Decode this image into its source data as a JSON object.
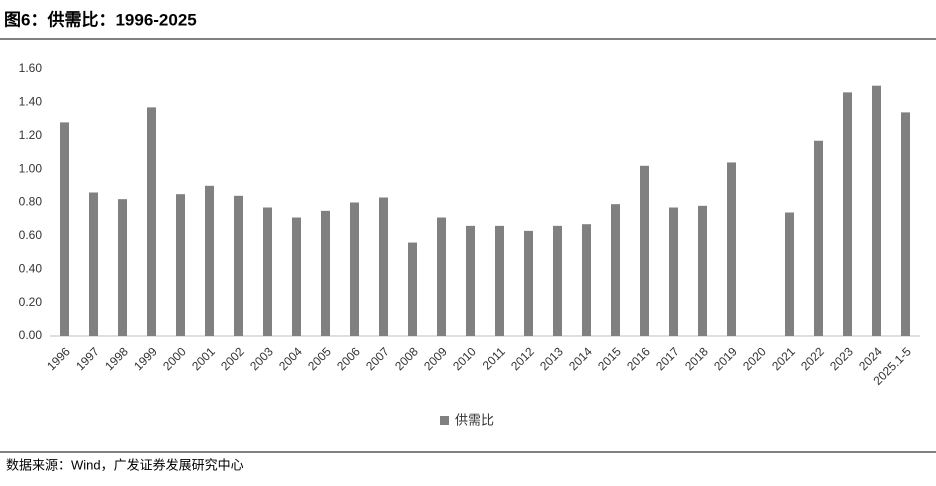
{
  "chart_data": {
    "type": "bar",
    "title": "图6：供需比：1996-2025",
    "categories": [
      "1996",
      "1997",
      "1998",
      "1999",
      "2000",
      "2001",
      "2002",
      "2003",
      "2004",
      "2005",
      "2006",
      "2007",
      "2008",
      "2009",
      "2010",
      "2011",
      "2012",
      "2013",
      "2014",
      "2015",
      "2016",
      "2017",
      "2018",
      "2019",
      "2020",
      "2021",
      "2022",
      "2023",
      "2024",
      "2025.1-5"
    ],
    "series": [
      {
        "name": "供需比",
        "color": "#808080",
        "values": [
          1.28,
          0.86,
          0.82,
          1.37,
          0.85,
          0.9,
          0.84,
          0.77,
          0.71,
          0.75,
          0.8,
          0.83,
          0.56,
          0.71,
          0.66,
          0.66,
          0.63,
          0.66,
          0.67,
          0.79,
          1.02,
          0.77,
          0.78,
          1.04,
          null,
          0.74,
          1.17,
          1.46,
          1.5,
          1.34
        ]
      }
    ],
    "ylim": [
      0,
      1.6
    ],
    "yticks": [
      {
        "value": 0,
        "label": "0.00"
      },
      {
        "value": 0.2,
        "label": "0.20"
      },
      {
        "value": 0.4,
        "label": "0.40"
      },
      {
        "value": 0.6,
        "label": "0.60"
      },
      {
        "value": 0.8,
        "label": "0.80"
      },
      {
        "value": 1,
        "label": "1.00"
      },
      {
        "value": 1.2,
        "label": "1.20"
      },
      {
        "value": 1.4,
        "label": "1.40"
      },
      {
        "value": 1.6,
        "label": "1.60"
      }
    ],
    "legend": "bottom",
    "source": "数据来源：Wind，广发证券发展研究中心"
  }
}
